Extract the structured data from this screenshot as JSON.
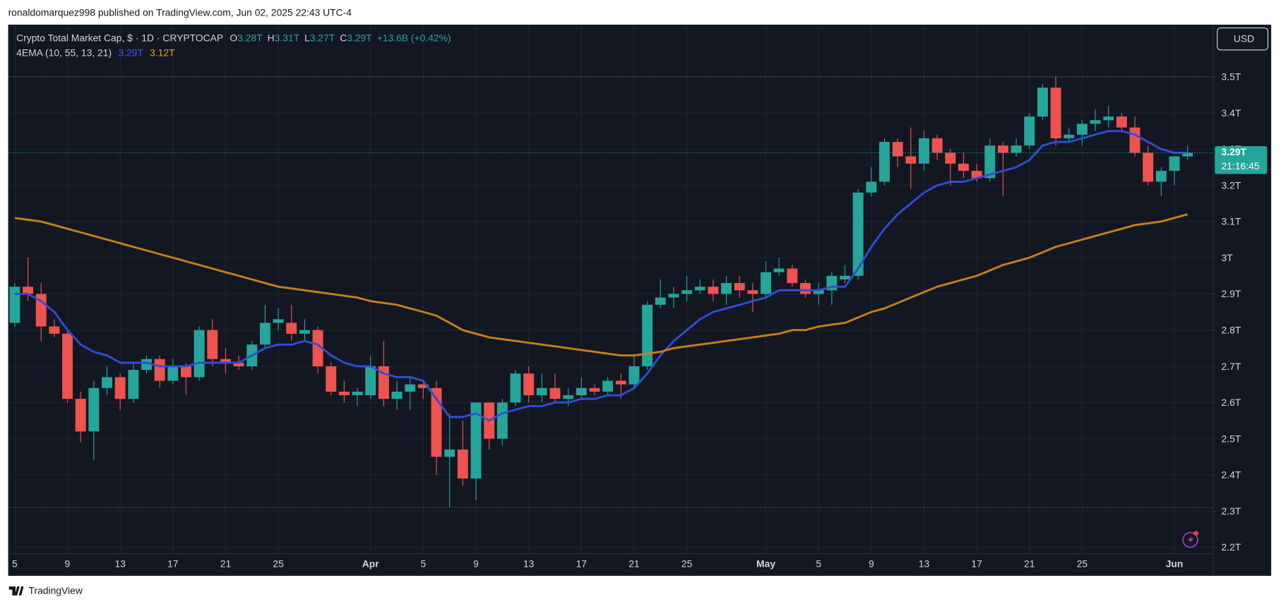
{
  "publisher": "ronaldomarquez998 published on TradingView.com, Jun 02, 2025 22:43 UTC-4",
  "footer": "TradingView",
  "currency": "USD",
  "legend": {
    "name": "Crypto Total Market Cap, $ · 1D · CRYPTOCAP",
    "ohlc": [
      {
        "key": "O",
        "value": "3.28T"
      },
      {
        "key": "H",
        "value": "3.31T"
      },
      {
        "key": "L",
        "value": "3.27T"
      },
      {
        "key": "C",
        "value": "3.29T"
      }
    ],
    "change": "+13.6B (+0.42%)"
  },
  "chart_data": {
    "type": "candlestick",
    "categories": [
      "5",
      null,
      null,
      null,
      "9",
      null,
      null,
      null,
      "13",
      null,
      null,
      null,
      "17",
      null,
      null,
      null,
      "21",
      null,
      null,
      null,
      "25",
      null,
      null,
      null,
      null,
      null,
      null,
      "Apr",
      null,
      null,
      null,
      "5",
      null,
      null,
      null,
      "9",
      null,
      null,
      null,
      "13",
      null,
      null,
      null,
      "17",
      null,
      null,
      null,
      "21",
      null,
      null,
      null,
      "25",
      null,
      null,
      null,
      null,
      null,
      "May",
      null,
      null,
      null,
      "5",
      null,
      null,
      null,
      "9",
      null,
      null,
      null,
      "13",
      null,
      null,
      null,
      "17",
      null,
      null,
      null,
      "21",
      null,
      null,
      null,
      "25",
      null,
      null,
      null,
      null,
      null,
      null,
      "Jun",
      null
    ],
    "open": [
      2.82,
      2.92,
      2.9,
      2.81,
      2.79,
      2.61,
      2.52,
      2.64,
      2.67,
      2.61,
      2.69,
      2.72,
      2.66,
      2.7,
      2.67,
      2.8,
      2.72,
      2.71,
      2.7,
      2.76,
      2.82,
      2.82,
      2.79,
      2.8,
      2.7,
      2.63,
      2.62,
      2.62,
      2.7,
      2.61,
      2.63,
      2.65,
      2.64,
      2.45,
      2.47,
      2.39,
      2.6,
      2.5,
      2.6,
      2.68,
      2.62,
      2.64,
      2.61,
      2.62,
      2.64,
      2.63,
      2.66,
      2.65,
      2.7,
      2.87,
      2.89,
      2.9,
      2.91,
      2.92,
      2.9,
      2.93,
      2.91,
      2.9,
      2.96,
      2.97,
      2.93,
      2.9,
      2.91,
      2.94,
      2.95,
      3.18,
      3.21,
      3.32,
      3.28,
      3.26,
      3.33,
      3.29,
      3.26,
      3.24,
      3.22,
      3.31,
      3.29,
      3.31,
      3.39,
      3.47,
      3.33,
      3.34,
      3.37,
      3.38,
      3.39,
      3.36,
      3.29,
      3.21,
      3.24,
      3.28
    ],
    "high": [
      2.93,
      3.0,
      2.93,
      2.83,
      2.8,
      2.63,
      2.66,
      2.7,
      2.68,
      2.71,
      2.73,
      2.73,
      2.72,
      2.71,
      2.81,
      2.83,
      2.75,
      2.73,
      2.77,
      2.87,
      2.86,
      2.87,
      2.83,
      2.81,
      2.71,
      2.66,
      2.64,
      2.73,
      2.77,
      2.66,
      2.67,
      2.66,
      2.66,
      2.57,
      2.55,
      2.6,
      2.6,
      2.61,
      2.69,
      2.7,
      2.68,
      2.68,
      2.64,
      2.67,
      2.65,
      2.67,
      2.68,
      2.73,
      2.88,
      2.94,
      2.92,
      2.95,
      2.94,
      2.94,
      2.95,
      2.95,
      2.93,
      2.99,
      3.0,
      2.98,
      2.94,
      2.93,
      2.96,
      2.98,
      3.19,
      3.25,
      3.33,
      3.33,
      3.36,
      3.35,
      3.34,
      3.3,
      3.29,
      3.26,
      3.33,
      3.32,
      3.33,
      3.4,
      3.48,
      3.5,
      3.36,
      3.38,
      3.41,
      3.42,
      3.4,
      3.39,
      3.31,
      3.25,
      3.28,
      3.31
    ],
    "low": [
      2.81,
      2.88,
      2.77,
      2.78,
      2.6,
      2.49,
      2.44,
      2.62,
      2.58,
      2.6,
      2.68,
      2.64,
      2.65,
      2.62,
      2.66,
      2.7,
      2.68,
      2.69,
      2.69,
      2.75,
      2.8,
      2.77,
      2.77,
      2.68,
      2.62,
      2.6,
      2.59,
      2.61,
      2.59,
      2.58,
      2.58,
      2.61,
      2.4,
      2.31,
      2.37,
      2.33,
      2.47,
      2.48,
      2.59,
      2.6,
      2.6,
      2.6,
      2.59,
      2.61,
      2.62,
      2.62,
      2.61,
      2.64,
      2.69,
      2.86,
      2.86,
      2.88,
      2.9,
      2.88,
      2.87,
      2.89,
      2.85,
      2.89,
      2.95,
      2.92,
      2.89,
      2.87,
      2.87,
      2.93,
      2.94,
      3.17,
      3.2,
      3.25,
      3.19,
      3.24,
      3.27,
      3.2,
      3.22,
      3.21,
      3.21,
      3.17,
      3.28,
      3.3,
      3.38,
      3.31,
      3.32,
      3.31,
      3.35,
      3.36,
      3.35,
      3.28,
      3.2,
      3.17,
      3.2,
      3.27
    ],
    "close": [
      2.92,
      2.9,
      2.81,
      2.79,
      2.61,
      2.52,
      2.64,
      2.67,
      2.61,
      2.69,
      2.72,
      2.66,
      2.7,
      2.67,
      2.8,
      2.72,
      2.71,
      2.7,
      2.76,
      2.82,
      2.83,
      2.79,
      2.8,
      2.7,
      2.63,
      2.62,
      2.63,
      2.7,
      2.61,
      2.63,
      2.65,
      2.64,
      2.45,
      2.47,
      2.39,
      2.6,
      2.5,
      2.6,
      2.68,
      2.62,
      2.64,
      2.61,
      2.62,
      2.64,
      2.63,
      2.66,
      2.65,
      2.7,
      2.87,
      2.89,
      2.9,
      2.91,
      2.92,
      2.9,
      2.93,
      2.91,
      2.9,
      2.96,
      2.97,
      2.93,
      2.9,
      2.91,
      2.95,
      2.95,
      3.18,
      3.21,
      3.32,
      3.28,
      3.26,
      3.33,
      3.29,
      3.26,
      3.24,
      3.22,
      3.31,
      3.29,
      3.31,
      3.39,
      3.47,
      3.33,
      3.34,
      3.37,
      3.38,
      3.39,
      3.36,
      3.29,
      3.21,
      3.24,
      3.28,
      3.29
    ],
    "up_color": "#26a69a",
    "down_color": "#ef5350",
    "ema": {
      "label": "4EMA (10, 55, 13, 21)",
      "series": [
        {
          "color": "#2f4ed3",
          "value_label": "3.29T",
          "values": [
            2.9,
            2.9,
            2.88,
            2.85,
            2.8,
            2.76,
            2.74,
            2.73,
            2.71,
            2.71,
            2.71,
            2.7,
            2.7,
            2.7,
            2.71,
            2.71,
            2.71,
            2.71,
            2.73,
            2.75,
            2.76,
            2.76,
            2.77,
            2.76,
            2.73,
            2.71,
            2.7,
            2.7,
            2.68,
            2.67,
            2.67,
            2.66,
            2.61,
            2.56,
            2.56,
            2.57,
            2.55,
            2.57,
            2.58,
            2.59,
            2.59,
            2.6,
            2.6,
            2.61,
            2.61,
            2.62,
            2.62,
            2.64,
            2.68,
            2.73,
            2.77,
            2.8,
            2.83,
            2.85,
            2.86,
            2.87,
            2.88,
            2.89,
            2.91,
            2.91,
            2.91,
            2.91,
            2.92,
            2.92,
            2.97,
            3.03,
            3.08,
            3.12,
            3.15,
            3.18,
            3.2,
            3.21,
            3.21,
            3.22,
            3.23,
            3.24,
            3.25,
            3.27,
            3.31,
            3.32,
            3.32,
            3.33,
            3.34,
            3.35,
            3.35,
            3.34,
            3.32,
            3.3,
            3.29,
            3.29
          ]
        },
        {
          "color": "#c8801b",
          "value_label": "3.12T",
          "values": [
            3.11,
            3.105,
            3.1,
            3.09,
            3.08,
            3.07,
            3.06,
            3.05,
            3.04,
            3.03,
            3.02,
            3.01,
            3.0,
            2.99,
            2.98,
            2.97,
            2.96,
            2.95,
            2.94,
            2.93,
            2.92,
            2.915,
            2.91,
            2.905,
            2.9,
            2.895,
            2.89,
            2.88,
            2.875,
            2.87,
            2.86,
            2.85,
            2.84,
            2.82,
            2.8,
            2.79,
            2.78,
            2.775,
            2.77,
            2.765,
            2.76,
            2.755,
            2.75,
            2.745,
            2.74,
            2.735,
            2.73,
            2.73,
            2.735,
            2.74,
            2.75,
            2.755,
            2.76,
            2.765,
            2.77,
            2.775,
            2.78,
            2.785,
            2.79,
            2.8,
            2.8,
            2.81,
            2.815,
            2.82,
            2.835,
            2.85,
            2.86,
            2.875,
            2.89,
            2.905,
            2.92,
            2.93,
            2.94,
            2.95,
            2.965,
            2.98,
            2.99,
            3.0,
            3.015,
            3.03,
            3.04,
            3.05,
            3.06,
            3.07,
            3.08,
            3.09,
            3.095,
            3.1,
            3.11,
            3.12
          ]
        }
      ]
    },
    "price_tag": {
      "label": "3.29T",
      "countdown": "21:16:45"
    },
    "ylim": [
      2.182,
      3.644
    ],
    "yticks": [
      {
        "value": 2.2,
        "label": "2.2T"
      },
      {
        "value": 2.3,
        "label": "2.3T"
      },
      {
        "value": 2.4,
        "label": "2.4T"
      },
      {
        "value": 2.5,
        "label": "2.5T"
      },
      {
        "value": 2.6,
        "label": "2.6T"
      },
      {
        "value": 2.7,
        "label": "2.7T"
      },
      {
        "value": 2.8,
        "label": "2.8T"
      },
      {
        "value": 2.9,
        "label": "2.9T"
      },
      {
        "value": 3,
        "label": "3T"
      },
      {
        "value": 3.1,
        "label": "3.1T"
      },
      {
        "value": 3.2,
        "label": "3.2T"
      },
      {
        "value": 3.3,
        "label": "3.3T"
      },
      {
        "value": 3.4,
        "label": "3.4T"
      },
      {
        "value": 3.5,
        "label": "3.5T"
      }
    ],
    "grid": true
  }
}
